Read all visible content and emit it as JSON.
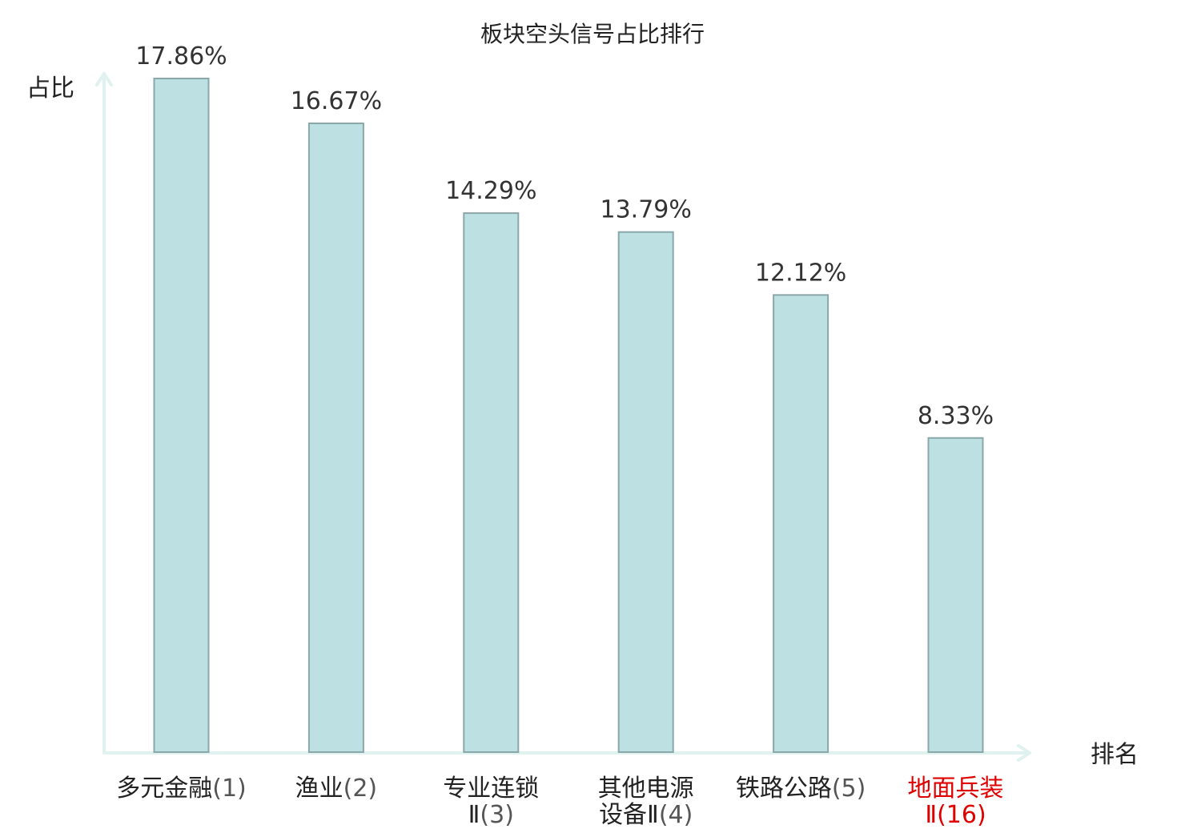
{
  "chart_data": {
    "type": "bar",
    "title": "板块空头信号占比排行",
    "ylabel": "占比",
    "xlabel": "排名",
    "ylim": [
      0,
      17.86
    ],
    "grid": false,
    "categories": [
      {
        "lines": [
          "多元金融"
        ],
        "rank": "(1)",
        "highlight": false
      },
      {
        "lines": [
          "渔业"
        ],
        "rank": "(2)",
        "highlight": false
      },
      {
        "lines": [
          "专业连锁",
          "Ⅱ"
        ],
        "rank": "(3)",
        "highlight": false
      },
      {
        "lines": [
          "其他电源",
          "设备Ⅱ"
        ],
        "rank": "(4)",
        "highlight": false
      },
      {
        "lines": [
          "铁路公路"
        ],
        "rank": "(5)",
        "highlight": false
      },
      {
        "lines": [
          "地面兵装",
          "Ⅱ"
        ],
        "rank": "(16)",
        "highlight": true
      }
    ],
    "values": [
      17.86,
      16.67,
      14.29,
      13.79,
      12.12,
      8.33
    ],
    "value_labels": [
      "17.86%",
      "16.67%",
      "14.29%",
      "13.79%",
      "12.12%",
      "8.33%"
    ],
    "colors": {
      "bar_fill": "#bde0e3",
      "bar_stroke": "#8aa7aa",
      "axis": "#dff2ef",
      "highlight": "#e00000"
    }
  }
}
